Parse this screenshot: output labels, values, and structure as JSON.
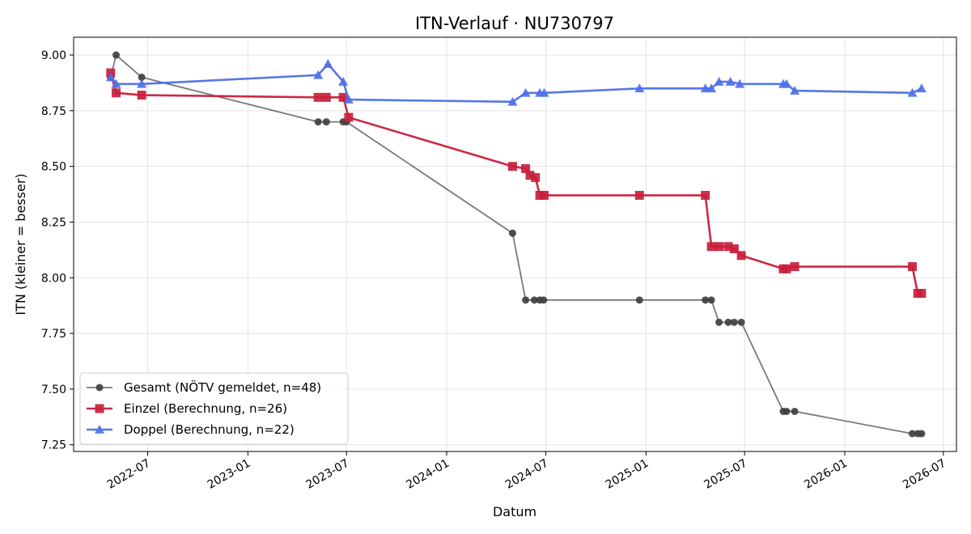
{
  "chart_data": {
    "type": "line",
    "title": "ITN-Verlauf · NU730797",
    "xlabel": "Datum",
    "ylabel": "ITN  (kleiner = besser)",
    "x_type": "date",
    "xlim": [
      "2022-02-15",
      "2026-07-25"
    ],
    "ylim": [
      7.22,
      9.08
    ],
    "x_ticks": [
      {
        "date": "2022-07-01",
        "label": "2022-07"
      },
      {
        "date": "2023-01-01",
        "label": "2023-01"
      },
      {
        "date": "2023-07-01",
        "label": "2023-07"
      },
      {
        "date": "2024-01-01",
        "label": "2024-01"
      },
      {
        "date": "2024-07-01",
        "label": "2024-07"
      },
      {
        "date": "2025-01-01",
        "label": "2025-01"
      },
      {
        "date": "2025-07-01",
        "label": "2025-07"
      },
      {
        "date": "2026-01-01",
        "label": "2026-01"
      },
      {
        "date": "2026-07-01",
        "label": "2026-07"
      }
    ],
    "y_ticks": [
      {
        "value": 7.25,
        "label": "7.25"
      },
      {
        "value": 7.5,
        "label": "7.50"
      },
      {
        "value": 7.75,
        "label": "7.75"
      },
      {
        "value": 8.0,
        "label": "8.00"
      },
      {
        "value": 8.25,
        "label": "8.25"
      },
      {
        "value": 8.5,
        "label": "8.50"
      },
      {
        "value": 8.75,
        "label": "8.75"
      },
      {
        "value": 9.0,
        "label": "9.00"
      }
    ],
    "grid": true,
    "legend_position": "lower-left",
    "series": [
      {
        "name": "Gesamt (NÖTV gemeldet, n=48)",
        "color": "#404040",
        "marker": "circle",
        "points": [
          [
            "2022-04-24",
            8.9
          ],
          [
            "2022-05-04",
            9.0
          ],
          [
            "2022-06-20",
            8.9
          ],
          [
            "2023-05-10",
            8.7
          ],
          [
            "2023-05-25",
            8.7
          ],
          [
            "2023-06-25",
            8.7
          ],
          [
            "2023-07-01",
            8.7
          ],
          [
            "2024-05-01",
            8.2
          ],
          [
            "2024-05-25",
            7.9
          ],
          [
            "2024-06-10",
            7.9
          ],
          [
            "2024-06-20",
            7.9
          ],
          [
            "2024-06-27",
            7.9
          ],
          [
            "2024-12-20",
            7.9
          ],
          [
            "2025-04-20",
            7.9
          ],
          [
            "2025-05-01",
            7.9
          ],
          [
            "2025-05-15",
            7.8
          ],
          [
            "2025-06-01",
            7.8
          ],
          [
            "2025-06-12",
            7.8
          ],
          [
            "2025-06-25",
            7.8
          ],
          [
            "2025-09-10",
            7.4
          ],
          [
            "2025-09-16",
            7.4
          ],
          [
            "2025-10-01",
            7.4
          ],
          [
            "2026-05-05",
            7.3
          ],
          [
            "2026-05-15",
            7.3
          ],
          [
            "2026-05-22",
            7.3
          ]
        ]
      },
      {
        "name": "Einzel (Berechnung, n=26)",
        "color": "#c81e3c",
        "marker": "square",
        "points": [
          [
            "2022-04-24",
            8.92
          ],
          [
            "2022-05-04",
            8.83
          ],
          [
            "2022-06-20",
            8.82
          ],
          [
            "2023-05-10",
            8.81
          ],
          [
            "2023-05-25",
            8.81
          ],
          [
            "2023-06-25",
            8.81
          ],
          [
            "2023-07-05",
            8.72
          ],
          [
            "2024-05-01",
            8.5
          ],
          [
            "2024-05-25",
            8.49
          ],
          [
            "2024-06-02",
            8.46
          ],
          [
            "2024-06-12",
            8.45
          ],
          [
            "2024-06-20",
            8.37
          ],
          [
            "2024-06-28",
            8.37
          ],
          [
            "2024-12-20",
            8.37
          ],
          [
            "2025-04-20",
            8.37
          ],
          [
            "2025-05-01",
            8.14
          ],
          [
            "2025-05-15",
            8.14
          ],
          [
            "2025-06-01",
            8.14
          ],
          [
            "2025-06-12",
            8.13
          ],
          [
            "2025-06-25",
            8.1
          ],
          [
            "2025-09-10",
            8.04
          ],
          [
            "2025-09-16",
            8.04
          ],
          [
            "2025-10-01",
            8.05
          ],
          [
            "2026-05-05",
            8.05
          ],
          [
            "2026-05-15",
            7.93
          ],
          [
            "2026-05-22",
            7.93
          ]
        ]
      },
      {
        "name": "Doppel (Berechnung, n=22)",
        "color": "#4d6fe8",
        "marker": "triangle",
        "points": [
          [
            "2022-04-24",
            8.9
          ],
          [
            "2022-05-04",
            8.87
          ],
          [
            "2022-06-20",
            8.87
          ],
          [
            "2023-05-10",
            8.91
          ],
          [
            "2023-05-28",
            8.96
          ],
          [
            "2023-06-25",
            8.88
          ],
          [
            "2023-07-05",
            8.8
          ],
          [
            "2024-05-01",
            8.79
          ],
          [
            "2024-05-25",
            8.83
          ],
          [
            "2024-06-20",
            8.83
          ],
          [
            "2024-06-28",
            8.83
          ],
          [
            "2024-12-20",
            8.85
          ],
          [
            "2025-04-20",
            8.85
          ],
          [
            "2025-05-01",
            8.85
          ],
          [
            "2025-05-15",
            8.88
          ],
          [
            "2025-06-05",
            8.88
          ],
          [
            "2025-06-22",
            8.87
          ],
          [
            "2025-09-10",
            8.87
          ],
          [
            "2025-09-16",
            8.87
          ],
          [
            "2025-10-01",
            8.84
          ],
          [
            "2026-05-05",
            8.83
          ],
          [
            "2026-05-22",
            8.85
          ]
        ]
      }
    ]
  }
}
